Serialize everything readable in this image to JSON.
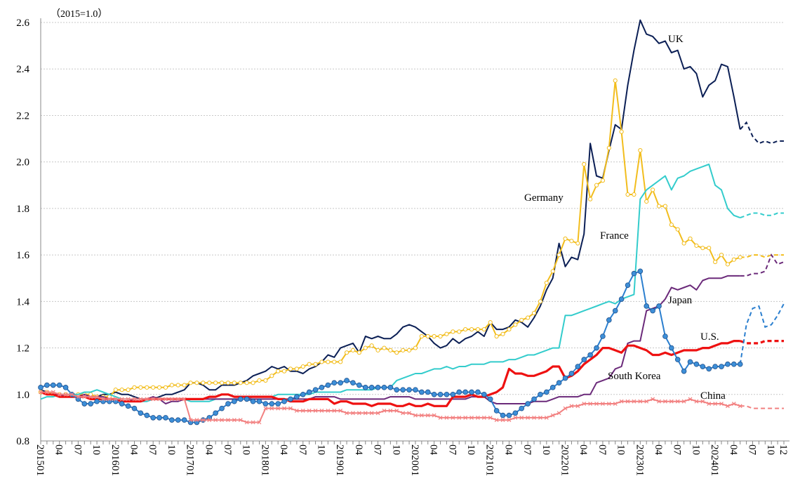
{
  "chart_data": {
    "type": "line",
    "unit_note": "（2015=1.0）",
    "categories": [
      "201501",
      null,
      null,
      "04",
      null,
      null,
      "07",
      null,
      null,
      "10",
      null,
      null,
      "201601",
      null,
      null,
      "04",
      null,
      null,
      "07",
      null,
      null,
      "10",
      null,
      null,
      "201701",
      null,
      null,
      "04",
      null,
      null,
      "07",
      null,
      null,
      "10",
      null,
      null,
      "201801",
      null,
      null,
      "04",
      null,
      null,
      "07",
      null,
      null,
      "10",
      null,
      null,
      "201901",
      null,
      null,
      "04",
      null,
      null,
      "07",
      null,
      null,
      "10",
      null,
      null,
      "202001",
      null,
      null,
      "04",
      null,
      null,
      "07",
      null,
      null,
      "10",
      null,
      null,
      "202101",
      null,
      null,
      "04",
      null,
      null,
      "07",
      null,
      null,
      "10",
      null,
      null,
      "202201",
      null,
      null,
      "04",
      null,
      null,
      "07",
      null,
      null,
      "10",
      null,
      null,
      "202301",
      null,
      null,
      "04",
      null,
      null,
      "07",
      null,
      null,
      "10",
      null,
      null,
      "202401",
      null,
      null,
      "04",
      null,
      null,
      "07",
      null,
      null,
      "10",
      null,
      "12"
    ],
    "ylim": [
      0.8,
      2.6
    ],
    "yticks": [
      0.8,
      {
        "value": 1,
        "label": "1.0"
      },
      1.2,
      1.4,
      1.6,
      1.8,
      {
        "value": 2,
        "label": "2.0"
      },
      2.2,
      2.4,
      2.6
    ],
    "grid": true,
    "dashed_from": 112,
    "series": [
      {
        "name": "UK",
        "color": "#0b1f55",
        "width": 2,
        "marker": "none",
        "values": [
          1.02,
          1.01,
          1.0,
          1.0,
          0.99,
          0.99,
          1.0,
          0.99,
          0.99,
          0.99,
          1.0,
          1.0,
          1.01,
          1.0,
          1.0,
          0.99,
          0.98,
          0.98,
          0.98,
          0.99,
          1.0,
          1.0,
          1.01,
          1.02,
          1.05,
          1.05,
          1.04,
          1.02,
          1.02,
          1.04,
          1.04,
          1.04,
          1.05,
          1.06,
          1.08,
          1.09,
          1.1,
          1.12,
          1.11,
          1.12,
          1.1,
          1.1,
          1.09,
          1.11,
          1.12,
          1.14,
          1.17,
          1.16,
          1.2,
          1.21,
          1.22,
          1.18,
          1.25,
          1.24,
          1.25,
          1.24,
          1.24,
          1.26,
          1.29,
          1.3,
          1.29,
          1.27,
          1.25,
          1.22,
          1.2,
          1.21,
          1.24,
          1.22,
          1.24,
          1.25,
          1.27,
          1.25,
          1.31,
          1.28,
          1.28,
          1.29,
          1.32,
          1.31,
          1.29,
          1.33,
          1.38,
          1.45,
          1.5,
          1.65,
          1.55,
          1.59,
          1.58,
          1.69,
          2.08,
          1.94,
          1.93,
          2.05,
          2.16,
          2.14,
          2.33,
          2.48,
          2.61,
          2.55,
          2.54,
          2.51,
          2.52,
          2.47,
          2.48,
          2.4,
          2.41,
          2.38,
          2.28,
          2.33,
          2.35,
          2.42,
          2.41,
          2.28,
          2.14,
          2.17,
          2.11,
          2.08,
          2.09,
          2.08,
          2.09,
          2.09
        ]
      },
      {
        "name": "Germany",
        "color": "#f2bd1d",
        "width": 2,
        "marker": "circle-open",
        "values": [
          1.01,
          1.01,
          1.0,
          1.0,
          1.0,
          1.0,
          1.0,
          1.0,
          1.0,
          0.99,
          0.99,
          0.99,
          1.02,
          1.02,
          1.02,
          1.03,
          1.03,
          1.03,
          1.03,
          1.03,
          1.03,
          1.04,
          1.04,
          1.04,
          1.05,
          1.05,
          1.05,
          1.05,
          1.05,
          1.05,
          1.05,
          1.05,
          1.05,
          1.05,
          1.05,
          1.06,
          1.06,
          1.08,
          1.1,
          1.1,
          1.11,
          1.11,
          1.12,
          1.13,
          1.13,
          1.14,
          1.14,
          1.14,
          1.14,
          1.18,
          1.19,
          1.18,
          1.2,
          1.21,
          1.19,
          1.2,
          1.19,
          1.18,
          1.19,
          1.19,
          1.2,
          1.25,
          1.25,
          1.25,
          1.25,
          1.26,
          1.27,
          1.27,
          1.28,
          1.28,
          1.28,
          1.28,
          1.31,
          1.25,
          1.26,
          1.28,
          1.3,
          1.32,
          1.33,
          1.35,
          1.4,
          1.48,
          1.53,
          1.6,
          1.67,
          1.66,
          1.65,
          1.99,
          1.84,
          1.9,
          1.92,
          2.06,
          2.35,
          2.13,
          1.86,
          1.86,
          2.05,
          1.83,
          1.88,
          1.81,
          1.81,
          1.73,
          1.71,
          1.65,
          1.67,
          1.64,
          1.63,
          1.63,
          1.57,
          1.6,
          1.56,
          1.58,
          1.59,
          1.59,
          1.6,
          1.6,
          1.59,
          1.6,
          1.6,
          1.6
        ]
      },
      {
        "name": "France",
        "color": "#33cccc",
        "width": 2,
        "marker": "none",
        "values": [
          0.98,
          0.99,
          0.99,
          1.0,
          1.0,
          1.0,
          1.0,
          1.01,
          1.01,
          1.02,
          1.01,
          1.0,
          0.99,
          0.98,
          0.98,
          0.97,
          0.97,
          0.97,
          0.98,
          0.98,
          0.98,
          0.98,
          0.98,
          0.98,
          0.97,
          0.97,
          0.97,
          0.97,
          0.98,
          0.98,
          0.98,
          0.98,
          0.98,
          0.98,
          0.99,
          0.99,
          0.99,
          0.99,
          1.0,
          1.0,
          1.0,
          1.0,
          1.0,
          1.0,
          1.01,
          1.01,
          1.01,
          1.01,
          1.01,
          1.02,
          1.02,
          1.02,
          1.02,
          1.02,
          1.03,
          1.03,
          1.03,
          1.06,
          1.07,
          1.08,
          1.09,
          1.09,
          1.1,
          1.11,
          1.11,
          1.12,
          1.11,
          1.12,
          1.12,
          1.13,
          1.13,
          1.13,
          1.14,
          1.14,
          1.14,
          1.15,
          1.15,
          1.16,
          1.17,
          1.17,
          1.18,
          1.19,
          1.2,
          1.2,
          1.34,
          1.34,
          1.35,
          1.36,
          1.37,
          1.38,
          1.39,
          1.4,
          1.39,
          1.41,
          1.42,
          1.43,
          1.84,
          1.88,
          1.9,
          1.92,
          1.94,
          1.88,
          1.93,
          1.94,
          1.96,
          1.97,
          1.98,
          1.99,
          1.9,
          1.88,
          1.8,
          1.77,
          1.76,
          1.77,
          1.78,
          1.78,
          1.77,
          1.77,
          1.78,
          1.78
        ]
      },
      {
        "name": "Japan",
        "color": "#6b2a7a",
        "width": 2,
        "marker": "none",
        "values": [
          1.01,
          1.0,
          1.0,
          1.0,
          0.99,
          0.99,
          0.99,
          1.0,
          0.99,
          0.99,
          0.99,
          0.98,
          0.98,
          0.97,
          0.97,
          0.98,
          0.98,
          0.98,
          0.99,
          0.98,
          0.96,
          0.97,
          0.97,
          0.98,
          0.98,
          0.98,
          0.98,
          0.98,
          0.98,
          0.98,
          0.98,
          0.98,
          0.98,
          0.98,
          0.98,
          0.98,
          0.98,
          0.98,
          0.98,
          0.98,
          0.98,
          0.98,
          0.98,
          0.98,
          0.99,
          0.99,
          0.99,
          0.99,
          0.98,
          0.98,
          0.98,
          0.98,
          0.98,
          0.98,
          0.98,
          0.98,
          0.99,
          0.99,
          0.99,
          0.99,
          0.98,
          0.98,
          0.98,
          0.98,
          0.98,
          0.98,
          0.98,
          0.98,
          0.98,
          0.99,
          0.99,
          0.99,
          0.97,
          0.96,
          0.96,
          0.96,
          0.96,
          0.96,
          0.96,
          0.97,
          0.97,
          0.97,
          0.98,
          0.99,
          0.99,
          0.99,
          0.99,
          1.0,
          1.0,
          1.05,
          1.06,
          1.07,
          1.11,
          1.12,
          1.22,
          1.23,
          1.23,
          1.36,
          1.37,
          1.38,
          1.41,
          1.46,
          1.45,
          1.46,
          1.47,
          1.45,
          1.49,
          1.5,
          1.5,
          1.5,
          1.51,
          1.51,
          1.51,
          1.51,
          1.52,
          1.52,
          1.53,
          1.6,
          1.56,
          1.57
        ]
      },
      {
        "name": "U.S.",
        "color": "#ee1111",
        "width": 3.2,
        "marker": "none",
        "values": [
          1.01,
          1.0,
          1.0,
          0.99,
          0.99,
          0.99,
          0.99,
          0.99,
          0.98,
          0.98,
          0.98,
          0.98,
          0.98,
          0.97,
          0.97,
          0.97,
          0.97,
          0.98,
          0.98,
          0.98,
          0.98,
          0.98,
          0.98,
          0.98,
          0.98,
          0.98,
          0.98,
          0.99,
          0.99,
          1.0,
          1.0,
          0.99,
          0.99,
          0.99,
          0.99,
          0.99,
          0.99,
          0.99,
          0.98,
          0.98,
          0.97,
          0.97,
          0.97,
          0.98,
          0.98,
          0.98,
          0.98,
          0.96,
          0.97,
          0.97,
          0.96,
          0.96,
          0.96,
          0.95,
          0.96,
          0.96,
          0.96,
          0.95,
          0.95,
          0.96,
          0.95,
          0.95,
          0.96,
          0.95,
          0.95,
          0.95,
          0.99,
          0.99,
          0.99,
          1.0,
          0.99,
          0.99,
          1.0,
          1.01,
          1.03,
          1.11,
          1.09,
          1.09,
          1.08,
          1.08,
          1.09,
          1.1,
          1.12,
          1.12,
          1.07,
          1.08,
          1.1,
          1.13,
          1.15,
          1.17,
          1.2,
          1.2,
          1.19,
          1.18,
          1.21,
          1.21,
          1.2,
          1.19,
          1.17,
          1.17,
          1.18,
          1.17,
          1.18,
          1.19,
          1.19,
          1.19,
          1.2,
          1.2,
          1.21,
          1.22,
          1.22,
          1.23,
          1.23,
          1.22,
          1.22,
          1.22,
          1.23,
          1.23,
          1.23,
          1.23
        ]
      },
      {
        "name": "South Korea",
        "color": "#2b7fcf",
        "width": 2,
        "marker": "circle",
        "values": [
          1.03,
          1.04,
          1.04,
          1.04,
          1.03,
          1.0,
          0.98,
          0.96,
          0.96,
          0.97,
          0.97,
          0.97,
          0.97,
          0.96,
          0.95,
          0.94,
          0.92,
          0.91,
          0.9,
          0.9,
          0.9,
          0.89,
          0.89,
          0.89,
          0.88,
          0.88,
          0.89,
          0.9,
          0.92,
          0.94,
          0.96,
          0.97,
          0.98,
          0.98,
          0.97,
          0.97,
          0.96,
          0.96,
          0.96,
          0.97,
          0.98,
          0.99,
          1.0,
          1.01,
          1.02,
          1.03,
          1.04,
          1.05,
          1.05,
          1.06,
          1.05,
          1.04,
          1.03,
          1.03,
          1.03,
          1.03,
          1.03,
          1.02,
          1.02,
          1.02,
          1.02,
          1.01,
          1.01,
          1.0,
          1.0,
          1.0,
          1.0,
          1.01,
          1.01,
          1.01,
          1.01,
          1.0,
          0.98,
          0.93,
          0.91,
          0.91,
          0.92,
          0.94,
          0.96,
          0.98,
          1.0,
          1.01,
          1.03,
          1.05,
          1.07,
          1.09,
          1.12,
          1.15,
          1.17,
          1.2,
          1.25,
          1.32,
          1.36,
          1.41,
          1.47,
          1.52,
          1.53,
          1.38,
          1.36,
          1.38,
          1.25,
          1.2,
          1.15,
          1.1,
          1.14,
          1.13,
          1.12,
          1.11,
          1.12,
          1.12,
          1.13,
          1.13,
          1.13,
          1.3,
          1.37,
          1.38,
          1.29,
          1.3,
          1.34,
          1.39
        ]
      },
      {
        "name": "China",
        "color": "#f28080",
        "width": 2,
        "marker": "cross",
        "values": [
          1.01,
          1.01,
          1.01,
          1.0,
          1.0,
          1.0,
          0.99,
          0.99,
          0.99,
          0.99,
          0.98,
          0.98,
          0.98,
          0.98,
          0.98,
          0.98,
          0.98,
          0.98,
          0.98,
          0.98,
          0.98,
          0.98,
          0.98,
          0.98,
          0.89,
          0.89,
          0.89,
          0.89,
          0.89,
          0.89,
          0.89,
          0.89,
          0.89,
          0.88,
          0.88,
          0.88,
          0.94,
          0.94,
          0.94,
          0.94,
          0.94,
          0.93,
          0.93,
          0.93,
          0.93,
          0.93,
          0.93,
          0.93,
          0.93,
          0.92,
          0.92,
          0.92,
          0.92,
          0.92,
          0.92,
          0.93,
          0.93,
          0.93,
          0.92,
          0.92,
          0.91,
          0.91,
          0.91,
          0.91,
          0.9,
          0.9,
          0.9,
          0.9,
          0.9,
          0.9,
          0.9,
          0.9,
          0.9,
          0.89,
          0.89,
          0.89,
          0.9,
          0.9,
          0.9,
          0.9,
          0.9,
          0.9,
          0.91,
          0.92,
          0.94,
          0.95,
          0.95,
          0.96,
          0.96,
          0.96,
          0.96,
          0.96,
          0.96,
          0.97,
          0.97,
          0.97,
          0.97,
          0.97,
          0.98,
          0.97,
          0.97,
          0.97,
          0.97,
          0.97,
          0.98,
          0.97,
          0.97,
          0.96,
          0.96,
          0.96,
          0.95,
          0.96,
          0.95,
          0.95,
          0.94,
          0.94,
          0.94,
          0.94,
          0.94,
          0.94
        ]
      }
    ]
  }
}
